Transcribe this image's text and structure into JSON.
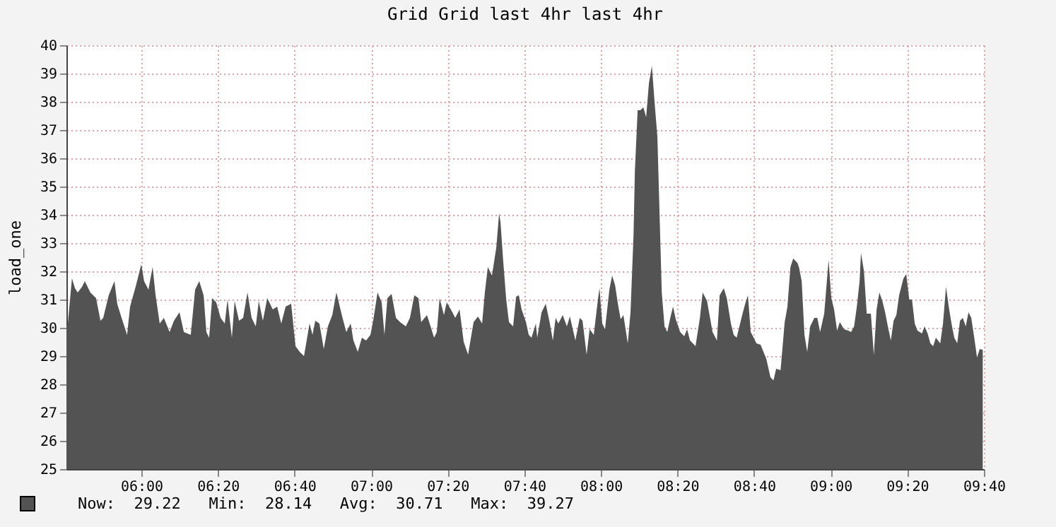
{
  "chart_data": {
    "type": "area",
    "title": "Grid Grid last 4hr last 4hr",
    "ylabel": "load_one",
    "annotations": [
      "Now:  29.22   Min:  28.14   Avg:  30.71   Max:  39.27"
    ],
    "xlim": [
      5.674,
      9.667
    ],
    "ylim": [
      25,
      40
    ],
    "xticks": [
      {
        "value": 6,
        "label": "06:00"
      },
      {
        "value": 6.333,
        "label": "06:20"
      },
      {
        "value": 6.667,
        "label": "06:40"
      },
      {
        "value": 7,
        "label": "07:00"
      },
      {
        "value": 7.333,
        "label": "07:20"
      },
      {
        "value": 7.667,
        "label": "07:40"
      },
      {
        "value": 8,
        "label": "08:00"
      },
      {
        "value": 8.333,
        "label": "08:20"
      },
      {
        "value": 8.667,
        "label": "08:40"
      },
      {
        "value": 9,
        "label": "09:00"
      },
      {
        "value": 9.333,
        "label": "09:20"
      },
      {
        "value": 9.667,
        "label": "09:40"
      }
    ],
    "yticks": [
      25,
      26,
      27,
      28,
      29,
      30,
      31,
      32,
      33,
      34,
      35,
      36,
      37,
      38,
      39,
      40
    ],
    "grid": true,
    "x": [
      5.674,
      5.68,
      5.698,
      5.711,
      5.723,
      5.742,
      5.754,
      5.778,
      5.803,
      5.822,
      5.834,
      5.858,
      5.883,
      5.895,
      5.914,
      5.938,
      5.951,
      5.975,
      6.0,
      6.012,
      6.031,
      6.049,
      6.062,
      6.08,
      6.098,
      6.123,
      6.142,
      6.166,
      6.185,
      6.215,
      6.234,
      6.252,
      6.271,
      6.283,
      6.295,
      6.308,
      6.326,
      6.345,
      6.363,
      6.375,
      6.394,
      6.406,
      6.425,
      6.443,
      6.462,
      6.48,
      6.498,
      6.511,
      6.529,
      6.548,
      6.572,
      6.591,
      6.609,
      6.628,
      6.652,
      6.671,
      6.689,
      6.708,
      6.732,
      6.745,
      6.757,
      6.775,
      6.794,
      6.812,
      6.831,
      6.849,
      6.874,
      6.892,
      6.911,
      6.923,
      6.942,
      6.96,
      6.978,
      6.997,
      7.009,
      7.028,
      7.046,
      7.058,
      7.071,
      7.089,
      7.108,
      7.126,
      7.151,
      7.169,
      7.188,
      7.206,
      7.218,
      7.243,
      7.255,
      7.274,
      7.286,
      7.298,
      7.317,
      7.329,
      7.354,
      7.366,
      7.385,
      7.403,
      7.422,
      7.446,
      7.465,
      7.483,
      7.495,
      7.508,
      7.526,
      7.545,
      7.557,
      7.563,
      7.575,
      7.588,
      7.6,
      7.618,
      7.631,
      7.643,
      7.655,
      7.674,
      7.686,
      7.698,
      7.717,
      7.723,
      7.742,
      7.76,
      7.778,
      7.791,
      7.803,
      7.815,
      7.834,
      7.852,
      7.865,
      7.889,
      7.908,
      7.92,
      7.938,
      7.951,
      7.969,
      7.988,
      7.994,
      8.006,
      8.018,
      8.037,
      8.049,
      8.062,
      8.074,
      8.086,
      8.098,
      8.117,
      8.129,
      8.142,
      8.148,
      8.16,
      8.172,
      8.185,
      8.197,
      8.209,
      8.222,
      8.234,
      8.246,
      8.265,
      8.277,
      8.289,
      8.302,
      8.314,
      8.326,
      8.345,
      8.363,
      8.375,
      8.388,
      8.412,
      8.431,
      8.443,
      8.462,
      8.474,
      8.486,
      8.505,
      8.517,
      8.535,
      8.548,
      8.566,
      8.578,
      8.591,
      8.603,
      8.615,
      8.628,
      8.64,
      8.652,
      8.665,
      8.677,
      8.695,
      8.72,
      8.738,
      8.751,
      8.763,
      8.782,
      8.8,
      8.812,
      8.825,
      8.837,
      8.855,
      8.862,
      8.874,
      8.886,
      8.898,
      8.911,
      8.929,
      8.942,
      8.954,
      8.972,
      8.991,
      9.003,
      9.015,
      9.028,
      9.04,
      9.058,
      9.077,
      9.089,
      9.102,
      9.114,
      9.126,
      9.132,
      9.145,
      9.157,
      9.175,
      9.188,
      9.2,
      9.212,
      9.225,
      9.237,
      9.249,
      9.262,
      9.274,
      9.286,
      9.298,
      9.317,
      9.329,
      9.342,
      9.354,
      9.366,
      9.378,
      9.397,
      9.409,
      9.422,
      9.434,
      9.446,
      9.458,
      9.477,
      9.489,
      9.502,
      9.514,
      9.526,
      9.538,
      9.551,
      9.563,
      9.575,
      9.588,
      9.6,
      9.612,
      9.625,
      9.637,
      9.649,
      9.662
    ],
    "series": [
      {
        "color": "#535353",
        "values": [
          30.0,
          30.15,
          31.75,
          31.4,
          31.25,
          31.45,
          31.65,
          31.25,
          31.05,
          30.25,
          30.35,
          31.15,
          31.65,
          30.85,
          30.35,
          29.75,
          30.75,
          31.45,
          32.25,
          31.65,
          31.35,
          32.15,
          31.15,
          30.15,
          30.35,
          29.85,
          30.25,
          30.55,
          29.85,
          29.75,
          31.35,
          31.65,
          31.15,
          29.85,
          29.65,
          31.05,
          30.9,
          30.35,
          30.15,
          31.0,
          29.65,
          30.95,
          30.25,
          30.35,
          31.25,
          30.35,
          30.05,
          30.95,
          30.25,
          31.05,
          30.65,
          30.75,
          30.15,
          30.75,
          30.85,
          29.35,
          29.15,
          29.0,
          30.15,
          29.75,
          30.25,
          30.15,
          29.25,
          30.05,
          30.45,
          31.25,
          30.4,
          29.85,
          30.15,
          29.55,
          29.15,
          29.65,
          29.55,
          29.75,
          30.25,
          31.25,
          30.9,
          29.75,
          31.05,
          31.2,
          30.35,
          30.2,
          30.05,
          30.35,
          31.15,
          31.05,
          30.2,
          30.45,
          30.15,
          29.65,
          29.85,
          31.05,
          30.45,
          30.9,
          30.55,
          30.35,
          30.65,
          29.5,
          29.05,
          30.2,
          30.4,
          30.15,
          31.25,
          32.15,
          31.85,
          32.85,
          34.05,
          33.75,
          32.35,
          31.0,
          30.2,
          30.05,
          31.1,
          31.15,
          30.65,
          30.2,
          29.75,
          29.65,
          30.15,
          29.65,
          30.55,
          30.85,
          30.15,
          29.55,
          30.35,
          30.15,
          30.45,
          30.05,
          30.4,
          29.55,
          30.35,
          30.25,
          29.05,
          29.95,
          29.75,
          31.05,
          31.4,
          30.15,
          29.95,
          31.35,
          31.85,
          31.5,
          30.85,
          30.3,
          30.45,
          29.45,
          30.55,
          33.25,
          35.55,
          37.7,
          37.7,
          37.8,
          37.45,
          38.65,
          39.27,
          37.95,
          36.75,
          31.25,
          30.05,
          29.85,
          30.35,
          30.75,
          30.3,
          29.85,
          29.7,
          29.95,
          29.55,
          29.35,
          30.35,
          31.25,
          30.95,
          30.4,
          29.85,
          29.55,
          31.15,
          31.4,
          31.05,
          30.15,
          29.75,
          29.65,
          30.05,
          30.45,
          30.85,
          31.15,
          29.85,
          29.65,
          29.45,
          29.4,
          28.9,
          28.25,
          28.14,
          28.55,
          28.5,
          30.2,
          30.75,
          32.15,
          32.45,
          32.3,
          32.15,
          31.65,
          29.75,
          29.15,
          30.05,
          30.35,
          30.35,
          29.85,
          30.5,
          32.4,
          31.05,
          30.65,
          29.9,
          30.2,
          29.95,
          29.9,
          29.85,
          30.05,
          30.75,
          31.65,
          32.65,
          32.0,
          30.5,
          30.5,
          29.05,
          30.65,
          31.25,
          30.95,
          30.55,
          30.05,
          29.55,
          30.25,
          30.45,
          31.15,
          31.75,
          31.9,
          31.0,
          31.0,
          30.15,
          29.9,
          29.8,
          30.05,
          29.8,
          29.45,
          29.35,
          29.65,
          29.45,
          30.15,
          31.45,
          30.75,
          30.15,
          29.65,
          29.45,
          30.25,
          30.35,
          30.05,
          30.55,
          30.35,
          29.65,
          28.95,
          29.25,
          29.22
        ]
      }
    ]
  }
}
